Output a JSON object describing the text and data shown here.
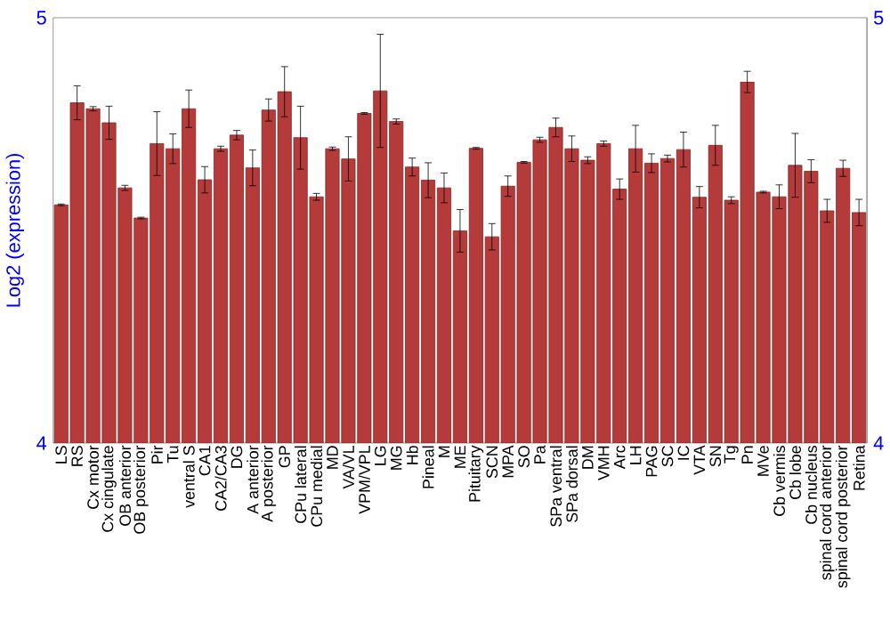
{
  "chart_data": {
    "type": "bar",
    "ylabel": "Log2 (expression)",
    "categories": [
      "LS",
      "RS",
      "Cx motor",
      "Cx cingulate",
      "OB anterior",
      "OB posterior",
      "Pir",
      "Tu",
      "ventral S",
      "CA1",
      "CA2/CA3",
      "DG",
      "A anterior",
      "A posterior",
      "GP",
      "CPu lateral",
      "CPu medial",
      "MD",
      "VA/VL",
      "VPM/VPL",
      "LG",
      "MG",
      "Hb",
      "Pineal",
      "M",
      "ME",
      "Pituitary",
      "SCN",
      "MPA",
      "SO",
      "Pa",
      "SPa ventral",
      "SPa dorsal",
      "DM",
      "VMH",
      "Arc",
      "LH",
      "PAG",
      "SC",
      "IC",
      "VTA",
      "SN",
      "Tg",
      "Pn",
      "MVe",
      "Cb vermis",
      "Cb lobe",
      "Cb nucleus",
      "spinal cord anterior",
      "spinal cord posterior",
      "Retina"
    ],
    "values": [
      4.56,
      4.8,
      4.786,
      4.753,
      4.6,
      4.529,
      4.704,
      4.692,
      4.786,
      4.619,
      4.692,
      4.724,
      4.647,
      4.783,
      4.826,
      4.718,
      4.579,
      4.692,
      4.668,
      4.775,
      4.828,
      4.756,
      4.649,
      4.618,
      4.6,
      4.499,
      4.693,
      4.485,
      4.604,
      4.66,
      4.713,
      4.742,
      4.692,
      4.665,
      4.704,
      4.597,
      4.692,
      4.658,
      4.669,
      4.69,
      4.578,
      4.7,
      4.571,
      4.849,
      4.59,
      4.579,
      4.653,
      4.639,
      4.546,
      4.646,
      4.542
    ],
    "errors": [
      0.002,
      0.04,
      0.005,
      0.039,
      0.006,
      0.002,
      0.075,
      0.035,
      0.044,
      0.031,
      0.006,
      0.011,
      0.042,
      0.026,
      0.059,
      0.074,
      0.008,
      0.004,
      0.052,
      0.002,
      0.133,
      0.006,
      0.021,
      0.041,
      0.035,
      0.05,
      0.002,
      0.031,
      0.024,
      0.002,
      0.006,
      0.022,
      0.03,
      0.008,
      0.006,
      0.024,
      0.055,
      0.022,
      0.008,
      0.041,
      0.025,
      0.047,
      0.008,
      0.025,
      0.002,
      0.028,
      0.075,
      0.027,
      0.027,
      0.019,
      0.031
    ],
    "color": "#b53a3a",
    "ylim": [
      4,
      5
    ],
    "yticks": [
      4,
      5
    ],
    "y2lim": [
      4,
      5
    ],
    "y2ticks": [
      4,
      5
    ]
  }
}
